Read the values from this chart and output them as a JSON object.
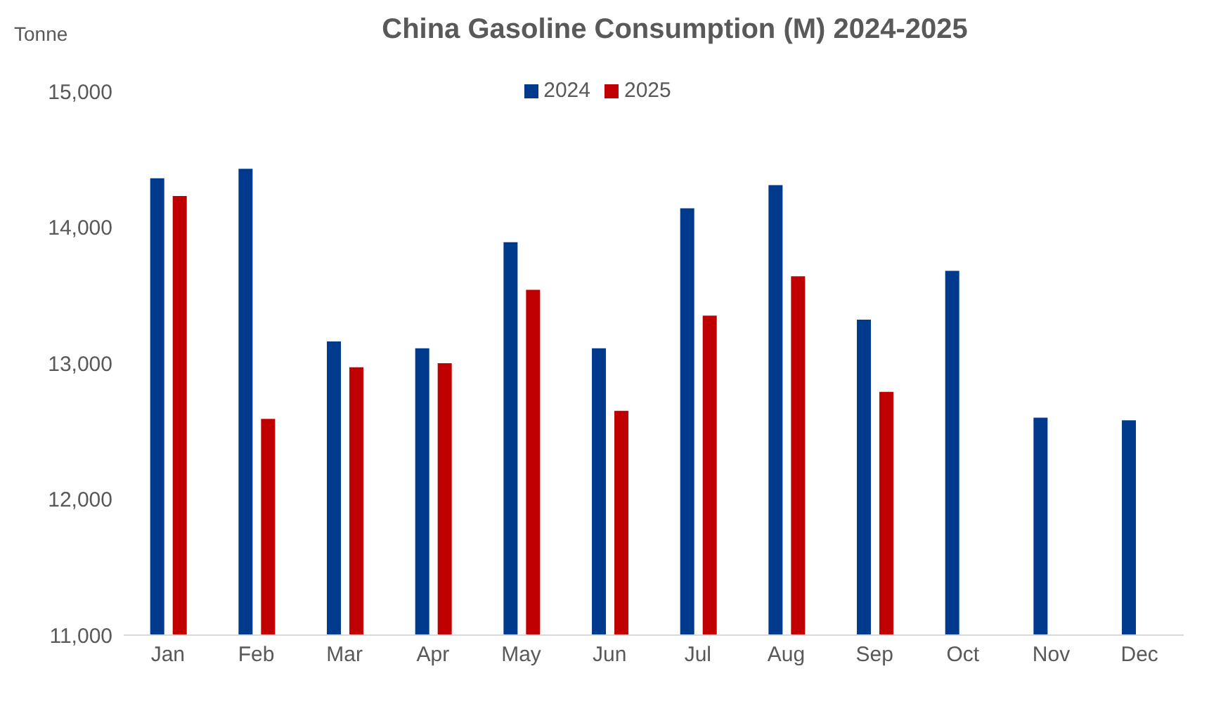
{
  "chart_data": {
    "type": "bar",
    "title": "China Gasoline Consumption (M) 2024-2025",
    "ylabel": "Tonne",
    "categories": [
      "Jan",
      "Feb",
      "Mar",
      "Apr",
      "May",
      "Jun",
      "Jul",
      "Aug",
      "Sep",
      "Oct",
      "Nov",
      "Dec"
    ],
    "series": [
      {
        "name": "2024",
        "color": "#003a8c",
        "values": [
          14360,
          14430,
          13160,
          13110,
          13890,
          13110,
          14140,
          14310,
          13320,
          13680,
          12600,
          12580
        ]
      },
      {
        "name": "2025",
        "color": "#c00000",
        "values": [
          14230,
          12590,
          12970,
          13000,
          13540,
          12650,
          13350,
          13640,
          12790,
          null,
          null,
          null
        ]
      }
    ],
    "ylim": [
      11000,
      15000
    ],
    "yticks": [
      {
        "value": 11000,
        "label": "11,000"
      },
      {
        "value": 12000,
        "label": "12,000"
      },
      {
        "value": 13000,
        "label": "13,000"
      },
      {
        "value": 14000,
        "label": "14,000"
      },
      {
        "value": 15000,
        "label": "15,000"
      }
    ],
    "grid": false,
    "legend": "top"
  }
}
